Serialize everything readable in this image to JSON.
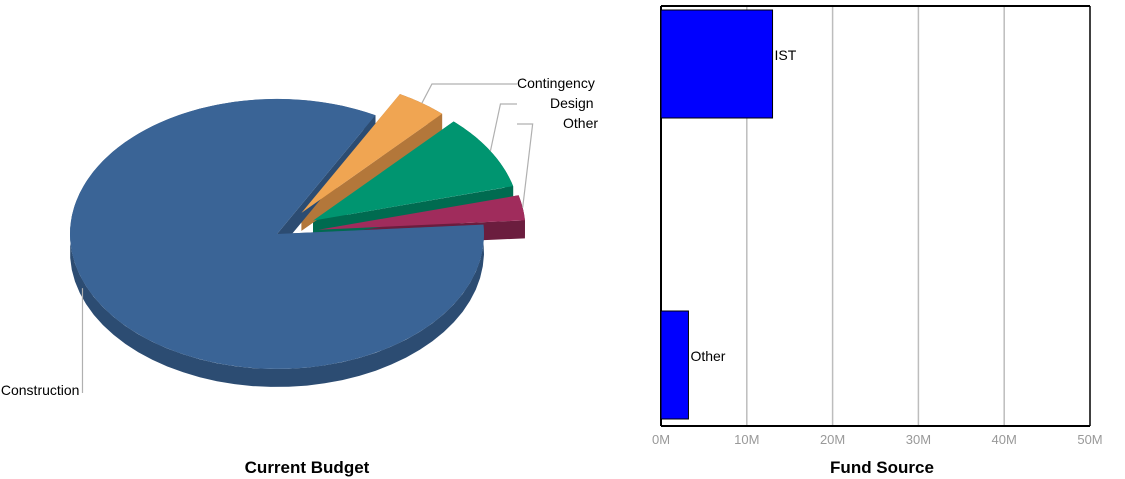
{
  "charts": {
    "current_budget": {
      "title": "Current Budget",
      "chart_data": {
        "type": "pie",
        "title": "Current Budget",
        "slices": [
          {
            "label": "Construction",
            "value": 84,
            "color": "#3A6496",
            "side_color": "#2C4C72"
          },
          {
            "label": "Contingency",
            "value": 4,
            "color": "#F0A552",
            "side_color": "#B3773A"
          },
          {
            "label": "Design",
            "value": 9,
            "color": "#009570",
            "side_color": "#006B50"
          },
          {
            "label": "Other",
            "value": 3,
            "color": "#A02C5C",
            "side_color": "#6B1D3E"
          }
        ],
        "exploded": [
          "Contingency",
          "Design",
          "Other"
        ]
      }
    },
    "fund_source": {
      "title": "Fund Source",
      "chart_data": {
        "type": "bar",
        "orientation": "horizontal",
        "title": "Fund Source",
        "categories": [
          "IST",
          "Other"
        ],
        "values": [
          13000000,
          3200000
        ],
        "bar_color": "#0000FF",
        "xlim": [
          0,
          50000000
        ],
        "x_ticks": [
          0,
          10000000,
          20000000,
          30000000,
          40000000,
          50000000
        ],
        "x_tick_labels": [
          "0M",
          "10M",
          "20M",
          "30M",
          "40M",
          "50M"
        ],
        "grid": true
      }
    }
  }
}
